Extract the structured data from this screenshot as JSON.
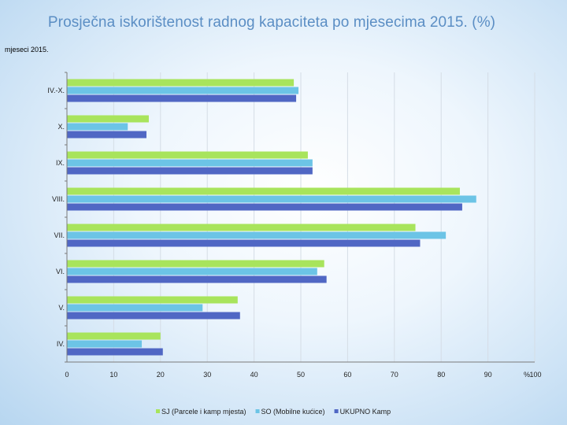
{
  "title": "Prosječna iskorištenost radnog kapaciteta po mjesecima 2015. (%)",
  "chart_data": {
    "type": "bar",
    "orientation": "horizontal",
    "title": "Prosječna iskorištenost radnog kapaciteta po mjesecima 2015. (%)",
    "ylabel": "mjeseci 2015.",
    "xlabel": "%",
    "xlim": [
      0,
      100
    ],
    "xticks": [
      "0",
      "10",
      "20",
      "30",
      "40",
      "50",
      "60",
      "70",
      "80",
      "90",
      "100"
    ],
    "categories": [
      "IV.-X.",
      "X.",
      "IX.",
      "VIII.",
      "VII.",
      "VI.",
      "V.",
      "IV."
    ],
    "series": [
      {
        "name": "SJ (Parcele i kamp mjesta)",
        "color": "#a8e45c",
        "values": [
          48.5,
          17.5,
          51.5,
          84,
          74.5,
          55,
          36.5,
          20
        ]
      },
      {
        "name": "SO (Mobilne kućice)",
        "color": "#6cc4e6",
        "values": [
          49.5,
          13,
          52.5,
          87.5,
          81,
          53.5,
          29,
          16
        ]
      },
      {
        "name": "UKUPNO Kamp",
        "color": "#5067c4",
        "values": [
          49,
          17,
          52.5,
          84.5,
          75.5,
          55.5,
          37,
          20.5
        ]
      }
    ],
    "legend_position": "bottom"
  }
}
